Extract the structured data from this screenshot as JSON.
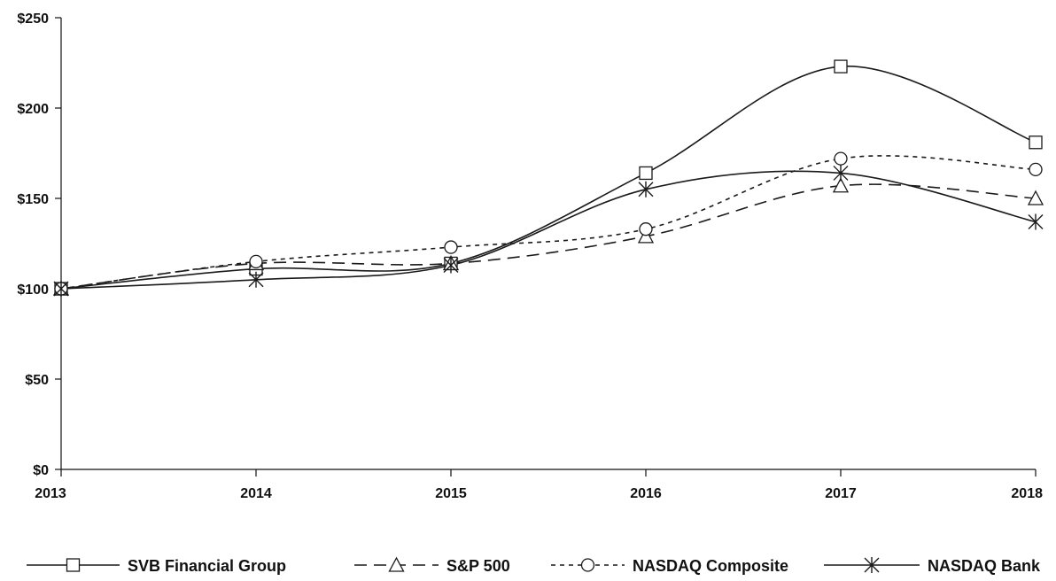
{
  "chart_data": {
    "type": "line",
    "title": "",
    "xlabel": "",
    "ylabel": "",
    "categories": [
      "2013",
      "2014",
      "2015",
      "2016",
      "2017",
      "2018"
    ],
    "ylim": [
      0,
      250
    ],
    "yticks": [
      0,
      50,
      100,
      150,
      200,
      250
    ],
    "ytick_labels": [
      "$0",
      "$50",
      "$100",
      "$150",
      "$200",
      "$250"
    ],
    "grid": false,
    "legend_position": "bottom",
    "series": [
      {
        "name": "SVB Financial Group",
        "values": [
          100,
          111,
          114,
          164,
          223,
          181
        ],
        "marker": "square",
        "dash": "solid"
      },
      {
        "name": "S&P 500",
        "values": [
          100,
          114,
          114,
          129,
          157,
          150
        ],
        "marker": "triangle",
        "dash": "long-dash"
      },
      {
        "name": "NASDAQ Composite",
        "values": [
          100,
          115,
          123,
          133,
          172,
          166
        ],
        "marker": "circle",
        "dash": "short-dash"
      },
      {
        "name": "NASDAQ Bank",
        "values": [
          100,
          105,
          113,
          155,
          164,
          137
        ],
        "marker": "asterisk",
        "dash": "solid"
      }
    ]
  }
}
